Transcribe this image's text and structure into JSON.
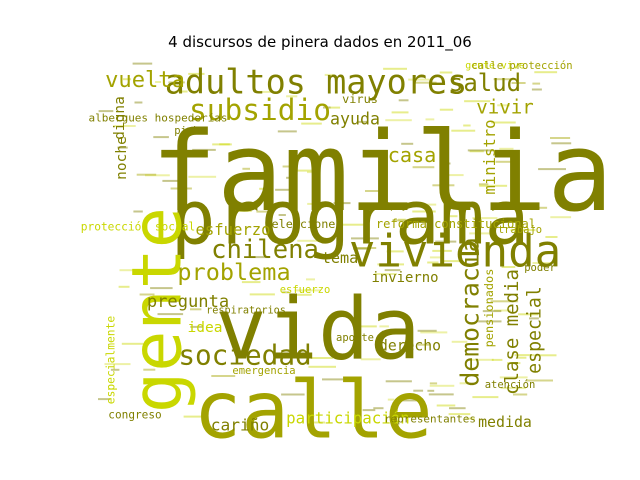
{
  "chart_data": {
    "type": "wordcloud",
    "title": "4 discursos de pinera dados en 2011_06",
    "colors": {
      "dark": "#808000",
      "mid": "#a3a300",
      "light": "#c9d700",
      "pale": "#d8e03a"
    },
    "words": [
      {
        "text": "familia",
        "weight": 100,
        "color": "dark"
      },
      {
        "text": "programa",
        "weight": 88,
        "color": "dark"
      },
      {
        "text": "vida",
        "weight": 86,
        "color": "dark"
      },
      {
        "text": "calle",
        "weight": 84,
        "color": "mid"
      },
      {
        "text": "gente",
        "weight": 78,
        "color": "light"
      },
      {
        "text": "vivienda",
        "weight": 40,
        "color": "dark"
      },
      {
        "text": "adultos mayores",
        "weight": 30,
        "color": "dark"
      },
      {
        "text": "subsidio",
        "weight": 30,
        "color": "mid"
      },
      {
        "text": "democracia",
        "weight": 28,
        "color": "dark"
      },
      {
        "text": "sociedad",
        "weight": 26,
        "color": "dark"
      },
      {
        "text": "chilena",
        "weight": 24,
        "color": "dark"
      },
      {
        "text": "clase media",
        "weight": 24,
        "color": "dark"
      },
      {
        "text": "especial",
        "weight": 22,
        "color": "dark"
      },
      {
        "text": "problema",
        "weight": 22,
        "color": "mid"
      },
      {
        "text": "salud",
        "weight": 22,
        "color": "dark"
      },
      {
        "text": "vuelta",
        "weight": 18,
        "color": "mid"
      },
      {
        "text": "participación",
        "weight": 18,
        "color": "light"
      },
      {
        "text": "pregunta",
        "weight": 17,
        "color": "dark"
      },
      {
        "text": "casa",
        "weight": 17,
        "color": "mid"
      },
      {
        "text": "vivir",
        "weight": 17,
        "color": "mid"
      },
      {
        "text": "cariño",
        "weight": 16,
        "color": "dark"
      },
      {
        "text": "esfuerzo",
        "weight": 15,
        "color": "mid"
      },
      {
        "text": "ayuda",
        "weight": 15,
        "color": "dark"
      },
      {
        "text": "ministro",
        "weight": 15,
        "color": "mid"
      },
      {
        "text": "noche",
        "weight": 15,
        "color": "dark"
      },
      {
        "text": "digna",
        "weight": 15,
        "color": "dark"
      },
      {
        "text": "idea",
        "weight": 15,
        "color": "light"
      },
      {
        "text": "invierno",
        "weight": 14,
        "color": "dark"
      },
      {
        "text": "derecho",
        "weight": 14,
        "color": "dark"
      },
      {
        "text": "medida",
        "weight": 14,
        "color": "dark"
      },
      {
        "text": "tema",
        "weight": 13,
        "color": "dark"
      },
      {
        "text": "pensionados",
        "weight": 14,
        "color": "mid"
      },
      {
        "text": "especialmente",
        "weight": 12,
        "color": "light"
      },
      {
        "text": "reforma constitucional",
        "weight": 11,
        "color": "mid"
      },
      {
        "text": "gente vive",
        "weight": 10,
        "color": "light"
      },
      {
        "text": "albergues hospederías",
        "weight": 9,
        "color": "dark"
      },
      {
        "text": "elecciones",
        "weight": 8,
        "color": "dark"
      },
      {
        "text": "calle protección",
        "weight": 7,
        "color": "mid"
      },
      {
        "text": "protección social",
        "weight": 7,
        "color": "light"
      },
      {
        "text": "representantes",
        "weight": 7,
        "color": "dark"
      },
      {
        "text": "emergencia",
        "weight": 7,
        "color": "mid"
      },
      {
        "text": "virus",
        "weight": 7,
        "color": "dark"
      },
      {
        "text": "piche",
        "weight": 6,
        "color": "dark"
      },
      {
        "text": "respiratorios",
        "weight": 6,
        "color": "dark"
      },
      {
        "text": "congreso",
        "weight": 6,
        "color": "dark"
      },
      {
        "text": "esfuerzo",
        "weight": 6,
        "color": "light"
      },
      {
        "text": "trabajo",
        "weight": 6,
        "color": "mid"
      },
      {
        "text": "atención",
        "weight": 6,
        "color": "dark"
      },
      {
        "text": "aporte",
        "weight": 6,
        "color": "dark"
      },
      {
        "text": "poder",
        "weight": 6,
        "color": "dark"
      }
    ]
  }
}
